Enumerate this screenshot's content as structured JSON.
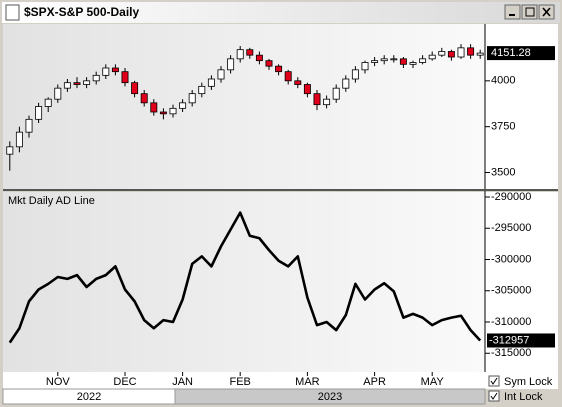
{
  "window": {
    "title": "$SPX-S&P 500-Daily",
    "controls": [
      "Sym Lock",
      "Int Lock"
    ],
    "years": [
      "2022",
      "2023"
    ]
  },
  "chart_data": [
    {
      "type": "candlestick",
      "categories": [
        null,
        null,
        null,
        null,
        null,
        "NOV",
        null,
        null,
        null,
        null,
        null,
        null,
        "DEC",
        null,
        null,
        null,
        null,
        null,
        "JAN",
        null,
        null,
        null,
        null,
        null,
        "FEB",
        null,
        null,
        null,
        null,
        null,
        null,
        "MAR",
        null,
        null,
        null,
        null,
        null,
        null,
        "APR",
        null,
        null,
        null,
        null,
        null,
        "MAY",
        null,
        null,
        null,
        null,
        null
      ],
      "open": [
        3600,
        3640,
        3720,
        3790,
        3860,
        3900,
        3960,
        3990,
        3980,
        4000,
        4030,
        4070,
        4050,
        3990,
        3930,
        3880,
        3830,
        3820,
        3850,
        3880,
        3930,
        3970,
        4010,
        4060,
        4120,
        4170,
        4140,
        4110,
        4080,
        4050,
        4000,
        3980,
        3930,
        3870,
        3900,
        3960,
        4010,
        4060,
        4100,
        4110,
        4120,
        4120,
        4090,
        4100,
        4120,
        4140,
        4160,
        4130,
        4180,
        4140
      ],
      "high": [
        3670,
        3750,
        3810,
        3880,
        3910,
        3980,
        4010,
        4020,
        4020,
        4050,
        4090,
        4090,
        4070,
        4000,
        3950,
        3900,
        3850,
        3870,
        3900,
        3950,
        3990,
        4030,
        4080,
        4140,
        4190,
        4180,
        4160,
        4120,
        4090,
        4060,
        4020,
        3990,
        3950,
        3920,
        3980,
        4030,
        4080,
        4110,
        4130,
        4140,
        4140,
        4130,
        4110,
        4140,
        4160,
        4180,
        4170,
        4200,
        4200,
        4170
      ],
      "low": [
        3510,
        3610,
        3690,
        3770,
        3830,
        3880,
        3940,
        3960,
        3960,
        3980,
        4010,
        4030,
        3970,
        3910,
        3860,
        3810,
        3790,
        3800,
        3830,
        3860,
        3910,
        3950,
        3990,
        4040,
        4100,
        4120,
        4090,
        4060,
        4030,
        3980,
        3960,
        3910,
        3840,
        3850,
        3880,
        3940,
        3990,
        4040,
        4080,
        4090,
        4100,
        4070,
        4070,
        4090,
        4110,
        4130,
        4110,
        4120,
        4120,
        4120
      ],
      "close": [
        3640,
        3720,
        3790,
        3860,
        3900,
        3960,
        3990,
        3980,
        4000,
        4030,
        4070,
        4050,
        3990,
        3930,
        3880,
        3830,
        3820,
        3850,
        3880,
        3930,
        3970,
        4010,
        4060,
        4120,
        4170,
        4140,
        4110,
        4080,
        4050,
        4000,
        3980,
        3930,
        3870,
        3900,
        3960,
        4010,
        4060,
        4100,
        4110,
        4120,
        4120,
        4090,
        4100,
        4120,
        4140,
        4160,
        4130,
        4180,
        4140,
        4151.28
      ],
      "up_color": "#ffffff",
      "down_color": "#e0001b",
      "ylim": [
        3410,
        4310
      ],
      "yticks": [
        3500,
        3750,
        4000
      ]
    },
    {
      "type": "line",
      "title": "Mkt Daily AD Line",
      "color": "#000000",
      "values": [
        -313300,
        -311000,
        -306700,
        -304800,
        -303900,
        -302800,
        -303100,
        -302500,
        -304400,
        -303100,
        -302500,
        -301100,
        -304800,
        -306700,
        -309700,
        -311000,
        -309700,
        -310000,
        -306400,
        -300700,
        -299500,
        -301100,
        -297900,
        -295200,
        -292500,
        -296200,
        -296600,
        -298500,
        -300200,
        -301100,
        -299500,
        -306100,
        -310500,
        -310000,
        -311300,
        -308900,
        -303900,
        -306400,
        -304800,
        -303800,
        -305100,
        -309300,
        -308700,
        -309300,
        -310500,
        -309700,
        -309300,
        -309000,
        -311300,
        -312957
      ],
      "ylim": [
        -318000,
        -289200
      ],
      "yticks": [
        -290000,
        -295000,
        -300000,
        -305000,
        -310000,
        -315000
      ]
    }
  ]
}
